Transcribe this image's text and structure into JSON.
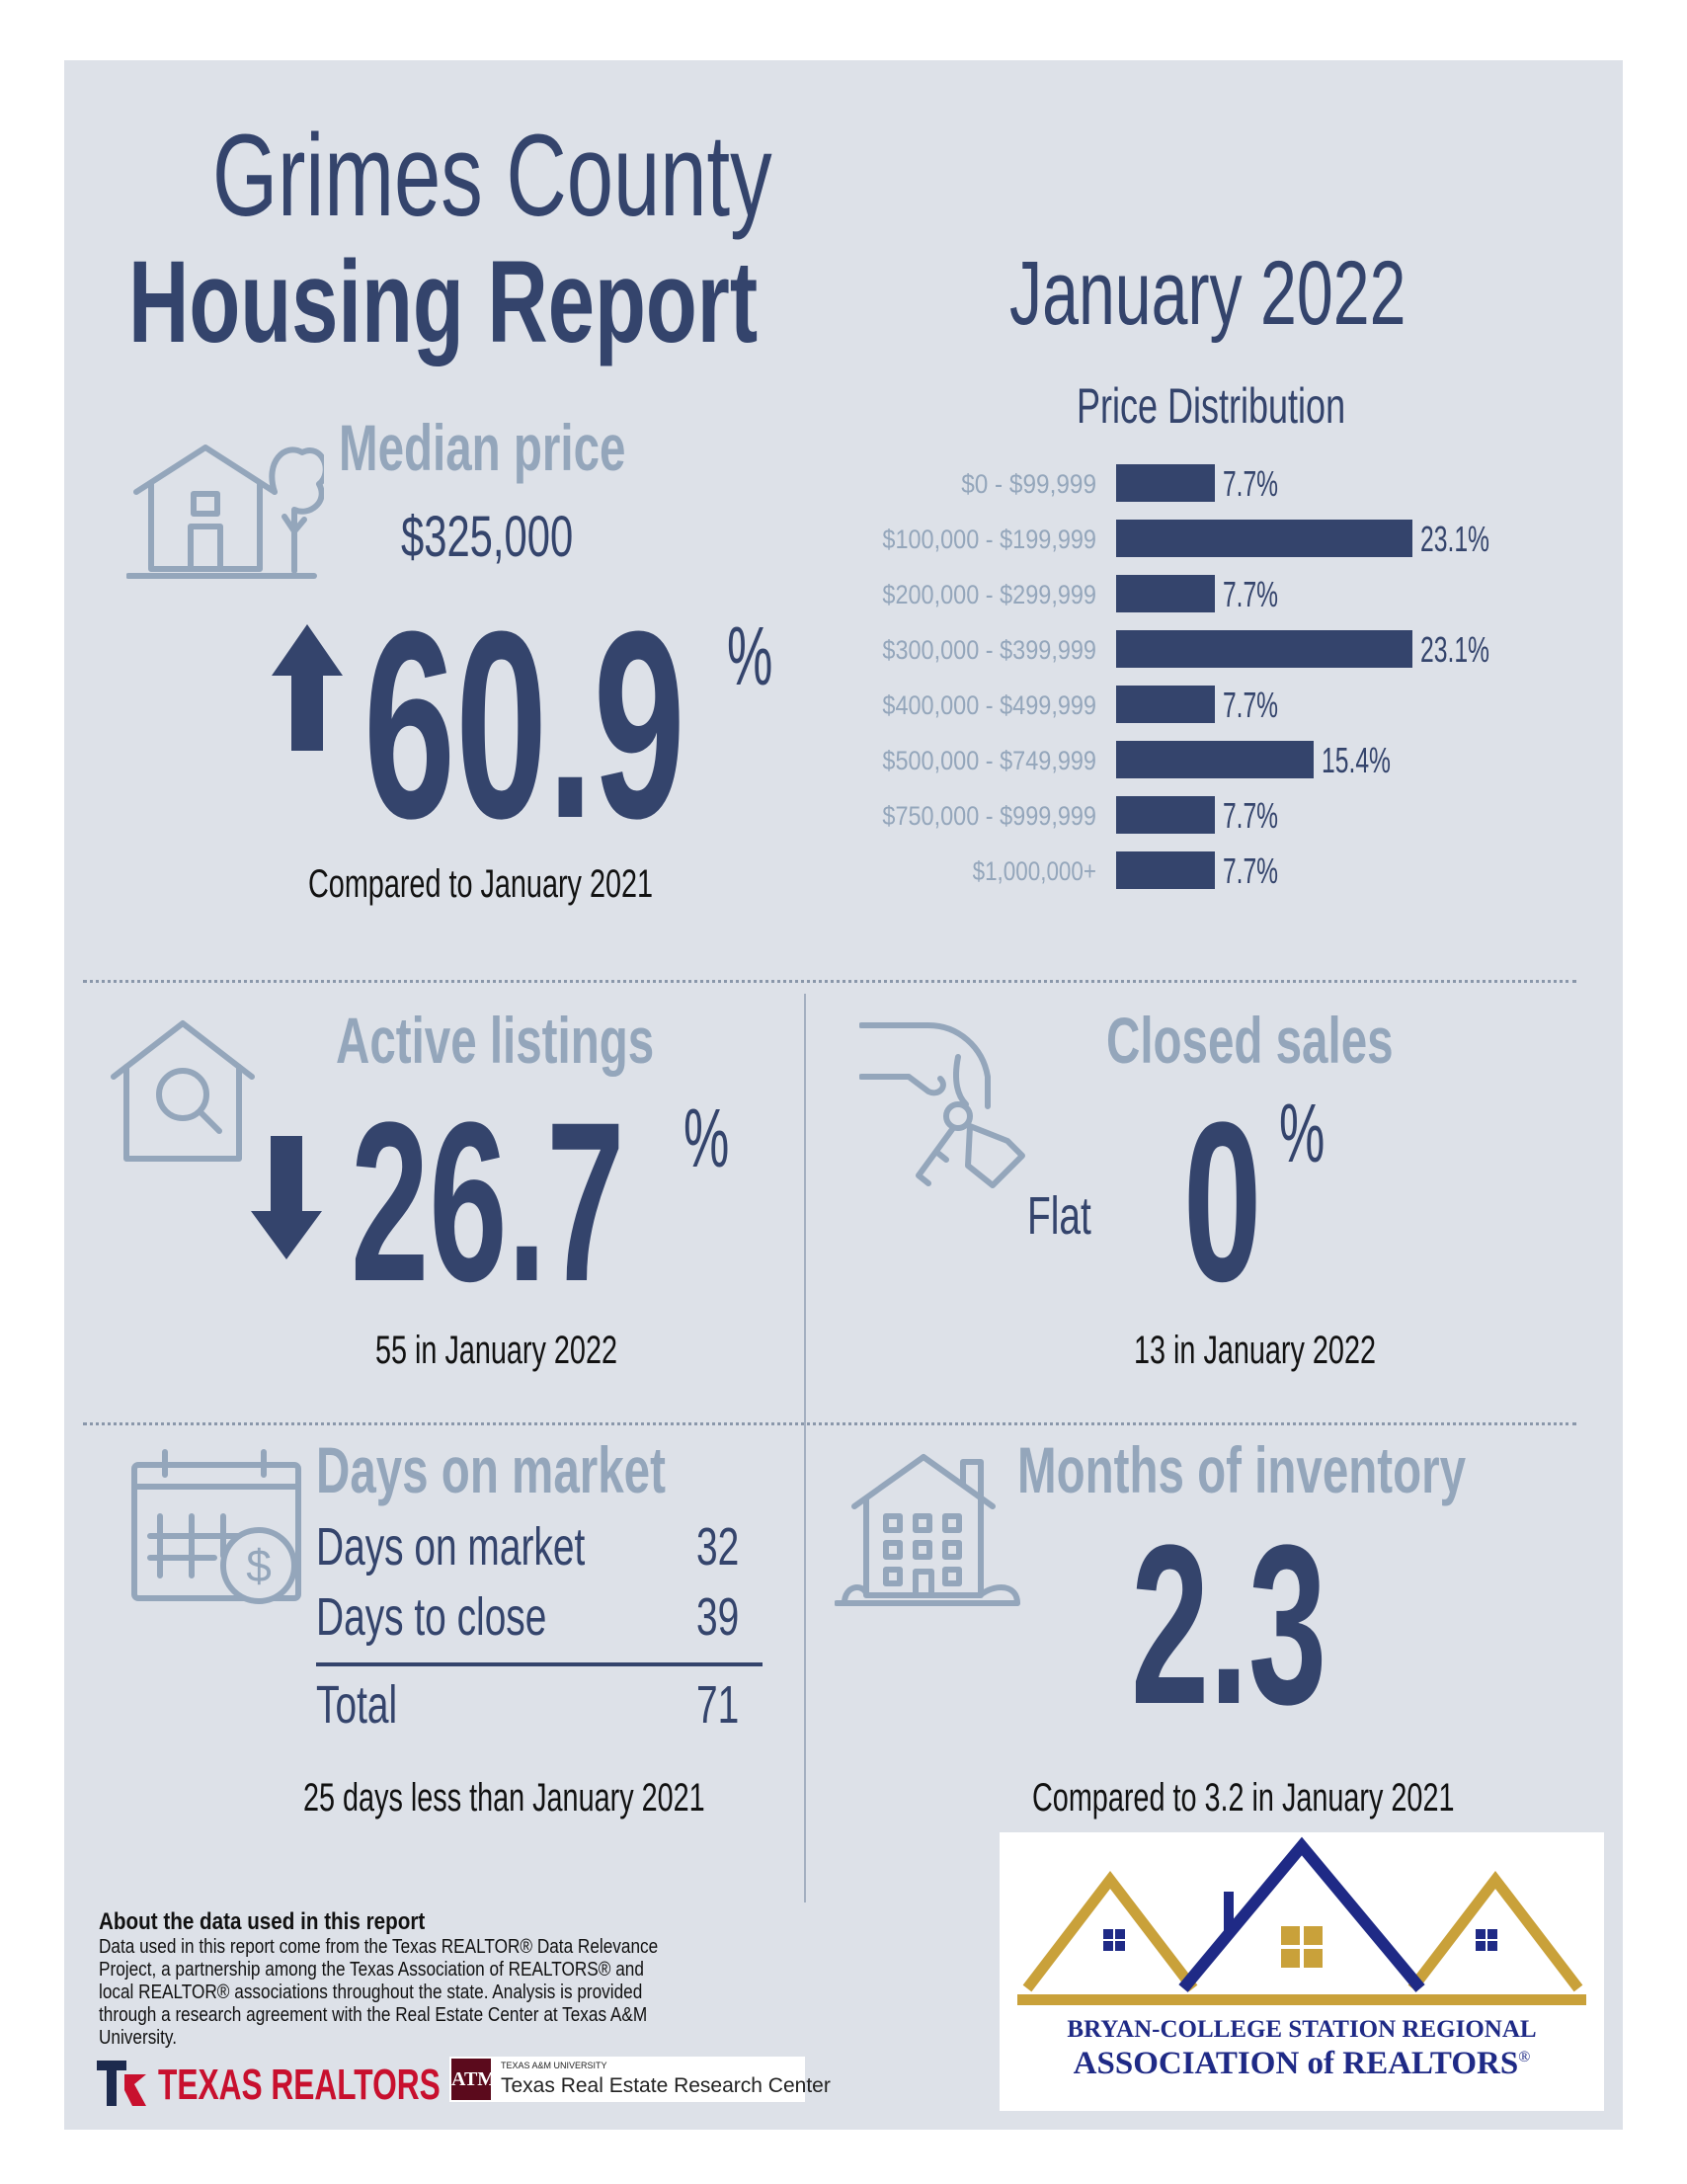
{
  "header": {
    "title_line1": "Grimes County",
    "title_line2": "Housing Report",
    "month": "January 2022"
  },
  "median_price": {
    "heading": "Median price",
    "value": "$325,000",
    "change": "60.9",
    "unit": "%",
    "direction": "up",
    "caption": "Compared to January 2021"
  },
  "price_distribution": {
    "title": "Price Distribution"
  },
  "chart_data": {
    "type": "bar",
    "orientation": "horizontal",
    "title": "Price Distribution",
    "categories": [
      "$0 - $99,999",
      "$100,000 - $199,999",
      "$200,000 - $299,999",
      "$300,000 - $399,999",
      "$400,000 - $499,999",
      "$500,000 - $749,999",
      "$750,000 - $999,999",
      "$1,000,000+"
    ],
    "values": [
      7.7,
      23.1,
      7.7,
      23.1,
      7.7,
      15.4,
      7.7,
      7.7
    ],
    "value_labels": [
      "7.7%",
      "23.1%",
      "7.7%",
      "23.1%",
      "7.7%",
      "15.4%",
      "7.7%",
      "7.7%"
    ],
    "bar_color": "#34446c"
  },
  "active_listings": {
    "heading": "Active listings",
    "change": "26.7",
    "unit": "%",
    "direction": "down",
    "caption": "55 in January 2022"
  },
  "closed_sales": {
    "heading": "Closed sales",
    "label": "Flat",
    "change": "0",
    "unit": "%",
    "caption": "13 in January 2022"
  },
  "days_on_market": {
    "heading": "Days on market",
    "rows": [
      {
        "label": "Days on market",
        "value": "32"
      },
      {
        "label": "Days to close",
        "value": "39"
      }
    ],
    "total_label": "Total",
    "total_value": "71",
    "caption": "25 days less than January 2021"
  },
  "months_inventory": {
    "heading": "Months of inventory",
    "value": "2.3",
    "caption": "Compared to 3.2 in January 2021"
  },
  "about": {
    "title": "About the data used in this report",
    "text": "Data used in this report come from the Texas REALTOR® Data Relevance Project, a partnership among the Texas Association of REALTORS® and local REALTOR® associations throughout the state. Analysis is provided through a research agreement with the Real Estate Center at Texas A&M University."
  },
  "footer_logos": {
    "texas_realtors": "TEXAS REALTORS",
    "tamu_small": "TEXAS A&M UNIVERSITY",
    "tamu_center": "Texas Real Estate Research Center",
    "association_line1": "BRYAN-COLLEGE STATION REGIONAL",
    "association_line2": "ASSOCIATION of REALTORS"
  },
  "colors": {
    "navy": "#34446c",
    "steel": "#94a6bb",
    "panel": "#dde1e8",
    "gold": "#c9a13a"
  }
}
